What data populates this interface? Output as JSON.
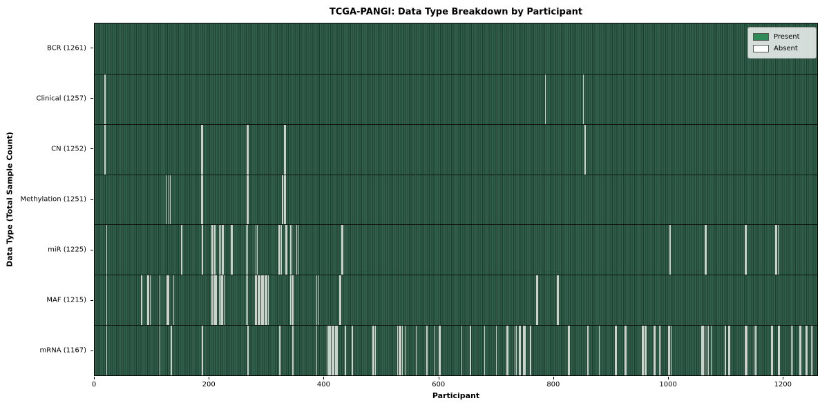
{
  "title": "TCGA-PANGI: Data Type Breakdown by Participant",
  "axes": {
    "xlabel": "Participant",
    "ylabel": "Data Type (Total Sample Count)"
  },
  "legend": {
    "items": [
      {
        "label": "Present",
        "color": "#2e8b57"
      },
      {
        "label": "Absent",
        "color": "#ffffff"
      }
    ]
  },
  "chart_data": {
    "type": "heatmap",
    "title": "TCGA-PANGI: Data Type Breakdown by Participant",
    "xlabel": "Participant",
    "ylabel": "Data Type (Total Sample Count)",
    "x_ticks": [
      0,
      200,
      400,
      600,
      800,
      1000,
      1200
    ],
    "x_range": [
      0,
      1261
    ],
    "n_participants": 1261,
    "present_color": "#2e8b57",
    "absent_color": "#ffffff",
    "grid": false,
    "legend_position": "upper right",
    "rows": [
      {
        "data_type": "BCR",
        "label": "BCR (1261)",
        "total": 1261,
        "absent": []
      },
      {
        "data_type": "Clinical",
        "label": "Clinical (1257)",
        "total": 1257,
        "absent": [
          17,
          18,
          786,
          852
        ]
      },
      {
        "data_type": "CN",
        "label": "CN (1252)",
        "total": 1252,
        "absent": [
          17,
          18,
          186,
          188,
          265,
          267,
          330,
          332,
          855
        ]
      },
      {
        "data_type": "Methylation",
        "label": "Methylation (1251)",
        "total": 1251,
        "absent": [
          124,
          129,
          131,
          186,
          188,
          265,
          267,
          327,
          330,
          332
        ]
      },
      {
        "data_type": "miR",
        "label": "miR (1225)",
        "total": 1225,
        "absent": [
          20,
          151,
          187,
          204,
          206,
          209,
          217,
          219,
          222,
          224,
          238,
          240,
          264,
          266,
          281,
          283,
          321,
          323,
          325,
          333,
          335,
          341,
          343,
          352,
          354,
          430,
          432,
          1003,
          1004,
          1064,
          1066,
          1134,
          1136,
          1188,
          1190,
          1192
        ]
      },
      {
        "data_type": "MAF",
        "label": "MAF (1215)",
        "total": 1215,
        "absent": [
          20,
          81,
          92,
          94,
          96,
          113,
          125,
          127,
          129,
          137,
          204,
          205,
          207,
          208,
          210,
          212,
          217,
          219,
          221,
          223,
          225,
          264,
          266,
          280,
          282,
          284,
          286,
          288,
          290,
          292,
          294,
          296,
          298,
          300,
          302,
          341,
          343,
          345,
          387,
          389,
          427,
          429,
          770,
          772,
          806,
          808
        ]
      },
      {
        "data_type": "mRNA",
        "label": "mRNA (1167)",
        "total": 1167,
        "absent": [
          20,
          113,
          133,
          187,
          267,
          322,
          324,
          345,
          387,
          405,
          407,
          409,
          411,
          413,
          415,
          417,
          419,
          421,
          423,
          437,
          449,
          485,
          487,
          489,
          528,
          530,
          532,
          534,
          536,
          541,
          560,
          579,
          592,
          600,
          602,
          640,
          655,
          680,
          700,
          718,
          720,
          733,
          735,
          740,
          742,
          748,
          750,
          760,
          826,
          828,
          860,
          880,
          908,
          910,
          925,
          927,
          955,
          957,
          960,
          962,
          975,
          977,
          985,
          987,
          1000,
          1002,
          1005,
          1059,
          1060,
          1062,
          1064,
          1068,
          1070,
          1075,
          1100,
          1105,
          1107,
          1135,
          1137,
          1150,
          1152,
          1155,
          1180,
          1182,
          1192,
          1194,
          1215,
          1217,
          1230,
          1232,
          1240,
          1242,
          1250,
          1252
        ]
      }
    ]
  }
}
